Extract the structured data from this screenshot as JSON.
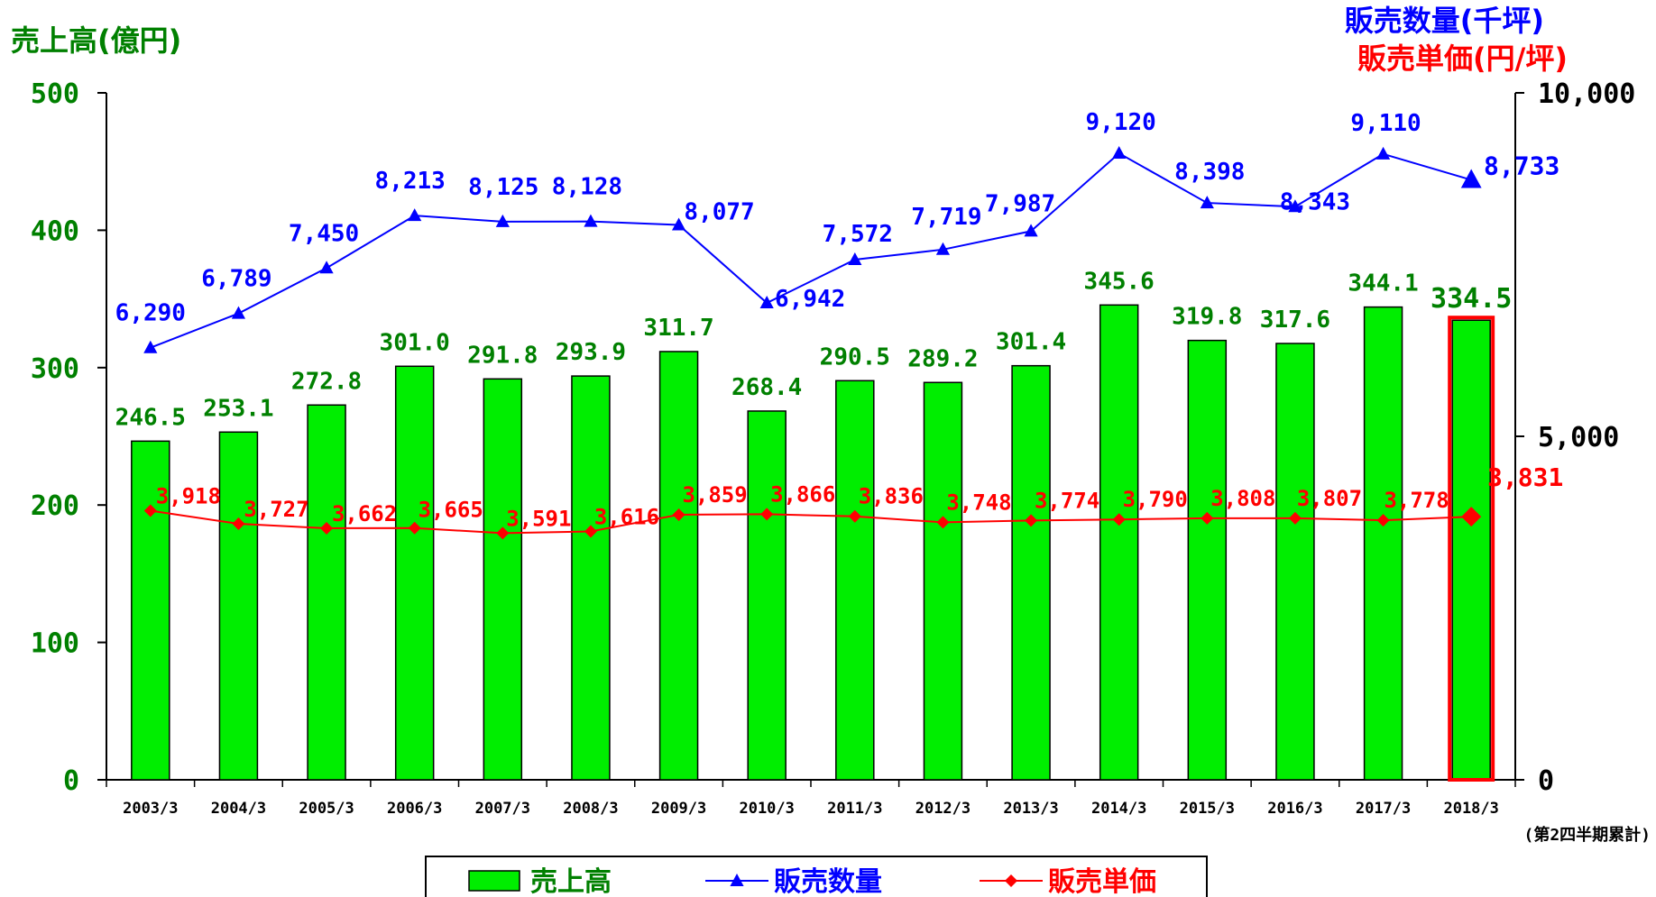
{
  "chart_data": {
    "type": "bar",
    "categories": [
      "2003/3",
      "2004/3",
      "2005/3",
      "2006/3",
      "2007/3",
      "2008/3",
      "2009/3",
      "2010/3",
      "2011/3",
      "2012/3",
      "2013/3",
      "2014/3",
      "2015/3",
      "2016/3",
      "2017/3",
      "2018/3"
    ],
    "bar_series": {
      "name": "売上高",
      "values": [
        246.5,
        253.1,
        272.8,
        301.0,
        291.8,
        293.9,
        311.7,
        268.4,
        290.5,
        289.2,
        301.4,
        345.6,
        319.8,
        317.6,
        344.1,
        334.5
      ],
      "labels": [
        "246.5",
        "253.1",
        "272.8",
        "301.0",
        "291.8",
        "293.9",
        "311.7",
        "268.4",
        "290.5",
        "289.2",
        "301.4",
        "345.6",
        "319.8",
        "317.6",
        "344.1",
        "334.5"
      ],
      "color": "#00ee00",
      "highlight_index": 15,
      "highlight_color": "#ff0000"
    },
    "line_series": [
      {
        "name": "販売数量",
        "axis": "right",
        "values": [
          6290,
          6789,
          7450,
          8213,
          8125,
          8128,
          8077,
          6942,
          7572,
          7719,
          7987,
          9120,
          8398,
          8343,
          9110,
          8733
        ],
        "labels": [
          "6,290",
          "6,789",
          "7,450",
          "8,213",
          "8,125",
          "8,128",
          "8,077",
          "6,942",
          "7,572",
          "7,719",
          "7,987",
          "9,120",
          "8,398",
          "8,343",
          "9,110",
          "8,733"
        ],
        "color": "#0000ff",
        "marker": "triangle"
      },
      {
        "name": "販売単価",
        "axis": "right",
        "values": [
          3918,
          3727,
          3662,
          3665,
          3591,
          3616,
          3859,
          3866,
          3836,
          3748,
          3774,
          3790,
          3808,
          3807,
          3778,
          3831
        ],
        "labels": [
          "3,918",
          "3,727",
          "3,662",
          "3,665",
          "3,591",
          "3,616",
          "3,859",
          "3,866",
          "3,836",
          "3,748",
          "3,774",
          "3,790",
          "3,808",
          "3,807",
          "3,778",
          "3,831"
        ],
        "color": "#ff0000",
        "marker": "diamond"
      }
    ],
    "left_axis": {
      "title": "売上高(億円)",
      "ylim": [
        0,
        500
      ],
      "ticks": [
        0,
        100,
        200,
        300,
        400,
        500
      ],
      "tick_labels": [
        "0",
        "100",
        "200",
        "300",
        "400",
        "500"
      ],
      "color": "#008000"
    },
    "right_axis": {
      "title_lines": [
        "販売数量(千坪)",
        "販売単価(円/坪)"
      ],
      "title_colors": [
        "#0000ff",
        "#ff0000"
      ],
      "ylim": [
        0,
        10000
      ],
      "ticks": [
        0,
        5000,
        10000
      ],
      "tick_labels": [
        "0",
        "5,000",
        "10,000"
      ],
      "color": "#000000"
    },
    "footnote": "(第2四半期累計)",
    "legend": {
      "placement": "bottom",
      "items": [
        "売上高",
        "販売数量",
        "販売単価"
      ]
    },
    "grid": false
  }
}
